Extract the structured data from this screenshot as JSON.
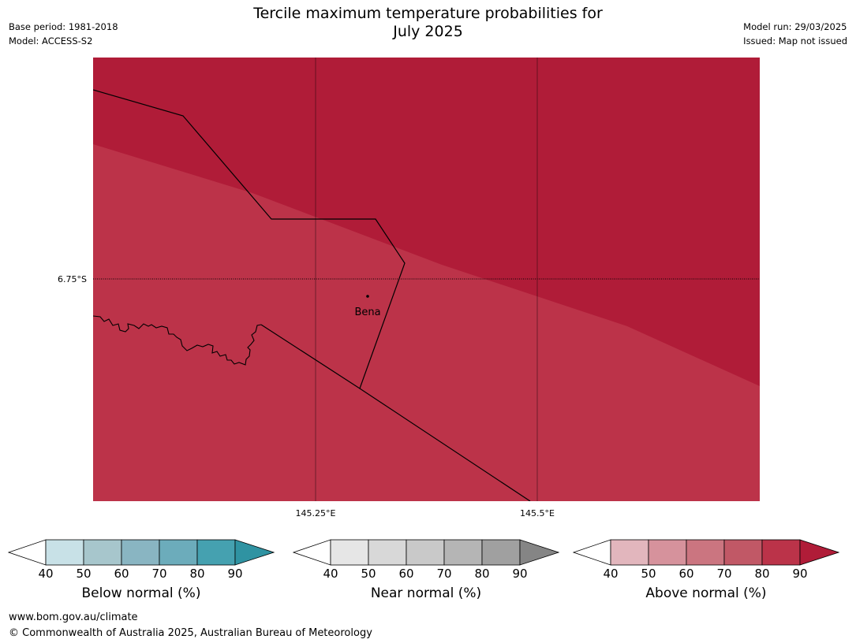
{
  "title": {
    "line1": "Tercile maximum temperature probabilities for",
    "line2": "July 2025"
  },
  "meta_left": {
    "base_period": "Base period: 1981-2018",
    "model": "Model: ACCESS-S2"
  },
  "meta_right": {
    "model_run": "Model run: 29/03/2025",
    "issued": "Issued: Map not issued"
  },
  "map": {
    "lat_label": "6.75°S",
    "lon_labels": [
      "145.25°E",
      "145.5°E"
    ],
    "place": "Bena",
    "colors": {
      "dark_region": "#b01c38",
      "light_region": "#bc3349",
      "grid": "#000000"
    }
  },
  "colorbars": [
    {
      "name": "below",
      "label": "Below normal (%)",
      "ticks": [
        "40",
        "50",
        "60",
        "70",
        "80",
        "90"
      ],
      "colors": [
        "#ffffff",
        "#c8e1e7",
        "#a7c6cc",
        "#89b5c2",
        "#6cacbb",
        "#45a1b0",
        "#2f93a2"
      ]
    },
    {
      "name": "near",
      "label": "Near normal (%)",
      "ticks": [
        "40",
        "50",
        "60",
        "70",
        "80",
        "90"
      ],
      "colors": [
        "#ffffff",
        "#e6e6e6",
        "#d8d8d8",
        "#c9c9c9",
        "#b5b5b5",
        "#a0a0a0",
        "#858585"
      ]
    },
    {
      "name": "above",
      "label": "Above normal (%)",
      "ticks": [
        "40",
        "50",
        "60",
        "70",
        "80",
        "90"
      ],
      "colors": [
        "#ffffff",
        "#e2b6bd",
        "#d6929c",
        "#cb7580",
        "#c15866",
        "#bb3349",
        "#b01c38"
      ]
    }
  ],
  "footer": {
    "url": "www.bom.gov.au/climate",
    "copyright": "© Commonwealth of Australia 2025, Australian Bureau of Meteorology"
  }
}
